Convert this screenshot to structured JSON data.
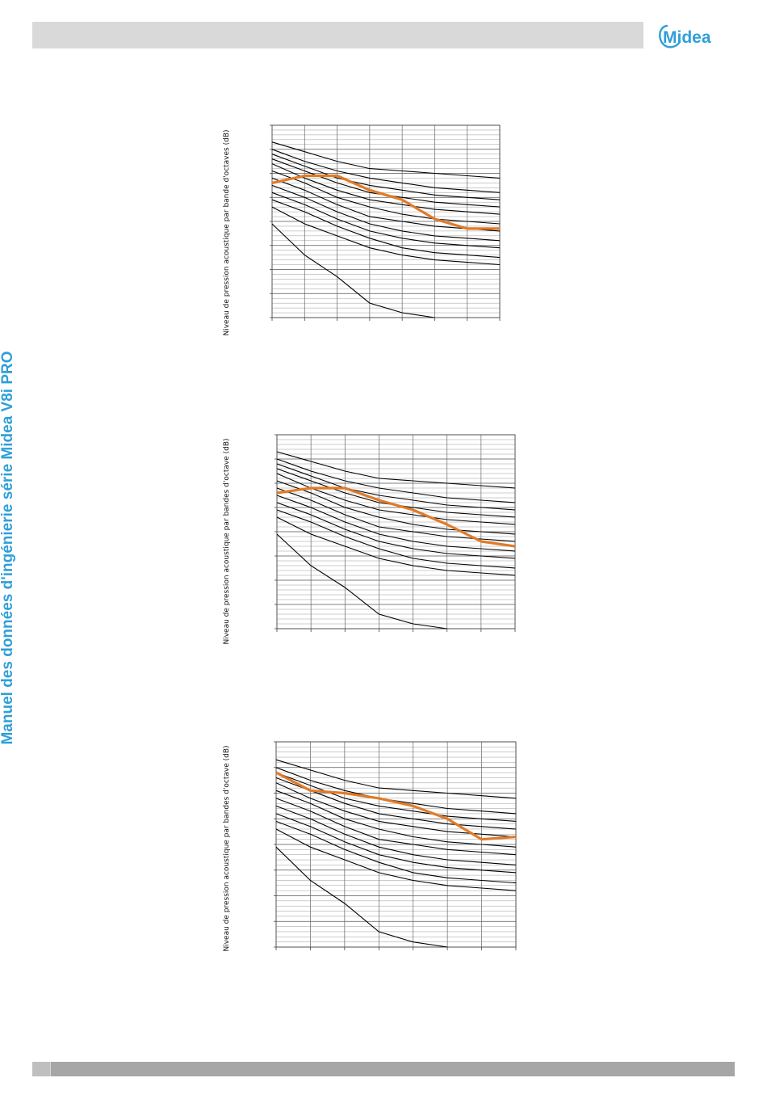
{
  "header": {
    "brand": "Midea"
  },
  "side_title": "Manuel des données d'ingénierie série Midea V8i PRO",
  "colors": {
    "accent": "#2f9fd8",
    "series": "#e07b28",
    "grid": "#777777",
    "curves": "#000000"
  },
  "chart_data": [
    {
      "type": "line",
      "xlabel": "",
      "ylabel": "Niveau de pression acoustique par bande d'octaves (dB)",
      "ylim": [
        0,
        80
      ],
      "x": [
        0,
        1,
        2,
        3,
        4,
        5,
        6,
        7
      ],
      "grid": true,
      "reference_curves": [
        [
          73,
          69,
          65,
          62,
          61,
          60,
          59,
          58
        ],
        [
          70,
          65,
          61,
          58,
          56,
          54,
          53,
          52
        ],
        [
          68,
          63,
          58,
          55,
          53,
          51,
          50,
          49
        ],
        [
          66,
          61,
          56,
          52,
          50,
          48,
          47,
          46
        ],
        [
          64,
          58,
          53,
          49,
          47,
          45,
          44,
          43
        ],
        [
          61,
          56,
          50,
          46,
          43,
          41,
          40,
          39
        ],
        [
          58,
          53,
          47,
          42,
          40,
          38,
          37,
          36
        ],
        [
          55,
          50,
          44,
          39,
          36,
          34,
          33,
          32
        ],
        [
          52,
          47,
          41,
          36,
          33,
          31,
          30,
          29
        ],
        [
          49,
          44,
          38,
          33,
          29,
          27,
          26,
          25
        ],
        [
          46,
          39,
          34,
          29,
          26,
          24,
          23,
          22
        ],
        [
          39,
          26,
          17,
          6,
          2,
          0,
          null,
          null
        ]
      ],
      "series": [
        {
          "values": [
            56,
            59,
            59,
            53,
            49,
            41,
            37,
            37
          ]
        }
      ]
    },
    {
      "type": "line",
      "xlabel": "",
      "ylabel": "Niveau de pression acoustique par bandes d'octave (dB)",
      "ylim": [
        0,
        80
      ],
      "x": [
        0,
        1,
        2,
        3,
        4,
        5,
        6,
        7
      ],
      "grid": true,
      "reference_curves": [
        [
          73,
          69,
          65,
          62,
          61,
          60,
          59,
          58
        ],
        [
          70,
          65,
          61,
          58,
          56,
          54,
          53,
          52
        ],
        [
          68,
          63,
          58,
          55,
          53,
          51,
          50,
          49
        ],
        [
          66,
          61,
          56,
          52,
          50,
          48,
          47,
          46
        ],
        [
          64,
          58,
          53,
          49,
          47,
          45,
          44,
          43
        ],
        [
          61,
          56,
          50,
          46,
          43,
          41,
          40,
          39
        ],
        [
          58,
          53,
          47,
          42,
          40,
          38,
          37,
          36
        ],
        [
          55,
          50,
          44,
          39,
          36,
          34,
          33,
          32
        ],
        [
          52,
          47,
          41,
          36,
          33,
          31,
          30,
          29
        ],
        [
          49,
          44,
          38,
          33,
          29,
          27,
          26,
          25
        ],
        [
          46,
          39,
          34,
          29,
          26,
          24,
          23,
          22
        ],
        [
          39,
          26,
          17,
          6,
          2,
          0,
          null,
          null
        ]
      ],
      "series": [
        {
          "values": [
            56,
            58,
            58,
            53,
            49,
            43,
            36,
            34
          ]
        }
      ]
    },
    {
      "type": "line",
      "xlabel": "",
      "ylabel": "Niveau de pression acoustique par bandes d'octave (dB)",
      "ylim": [
        0,
        80
      ],
      "x": [
        0,
        1,
        2,
        3,
        4,
        5,
        6,
        7
      ],
      "grid": true,
      "reference_curves": [
        [
          73,
          69,
          65,
          62,
          61,
          60,
          59,
          58
        ],
        [
          70,
          65,
          61,
          58,
          56,
          54,
          53,
          52
        ],
        [
          68,
          63,
          58,
          55,
          53,
          51,
          50,
          49
        ],
        [
          66,
          61,
          56,
          52,
          50,
          48,
          47,
          46
        ],
        [
          64,
          58,
          53,
          49,
          47,
          45,
          44,
          43
        ],
        [
          61,
          56,
          50,
          46,
          43,
          41,
          40,
          39
        ],
        [
          58,
          53,
          47,
          42,
          40,
          38,
          37,
          36
        ],
        [
          55,
          50,
          44,
          39,
          36,
          34,
          33,
          32
        ],
        [
          52,
          47,
          41,
          36,
          33,
          31,
          30,
          29
        ],
        [
          49,
          44,
          38,
          33,
          29,
          27,
          26,
          25
        ],
        [
          46,
          39,
          34,
          29,
          26,
          24,
          23,
          22
        ],
        [
          39,
          26,
          17,
          6,
          2,
          0,
          null,
          null
        ]
      ],
      "series": [
        {
          "values": [
            68,
            61,
            60,
            58,
            55,
            50,
            42,
            43
          ]
        }
      ]
    }
  ]
}
